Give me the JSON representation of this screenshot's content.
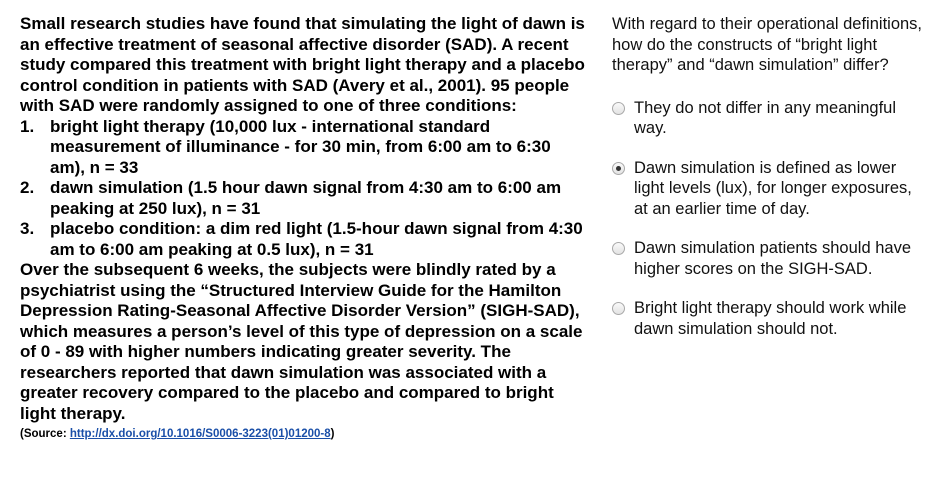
{
  "passage": {
    "intro": "Small research studies have found that simulating the light of dawn is an effective treatment of seasonal affective disorder (SAD). A recent study compared this treatment with bright light therapy and a placebo control condition in patients with SAD (Avery et al., 2001). 95 people with SAD were randomly assigned to one of three conditions:",
    "conditions": [
      {
        "num": "1.",
        "text": "bright light therapy (10,000 lux - international standard measurement of illuminance - for 30 min, from 6:00 am to 6:30 am), n = 33"
      },
      {
        "num": "2.",
        "text": "dawn simulation (1.5 hour dawn signal from 4:30 am to 6:00 am peaking at 250 lux), n = 31"
      },
      {
        "num": "3.",
        "text": "placebo condition: a dim red light (1.5-hour dawn signal from 4:30 am to 6:00 am peaking at 0.5 lux), n = 31"
      }
    ],
    "conclusion": "Over the subsequent 6 weeks, the subjects were blindly rated by a psychiatrist using the “Structured Interview Guide for the Hamilton Depression Rating-Seasonal Affective Disorder Version” (SIGH-SAD), which measures a person’s level of this type of depression on a scale of 0 - 89 with higher numbers indicating greater severity. The researchers reported that dawn simulation was associated with a greater recovery compared to the placebo and compared to bright light therapy.",
    "source_prefix": "(Source: ",
    "source_link": "http://dx.doi.org/10.1016/S0006-3223(01)01200-8",
    "source_suffix": ")"
  },
  "question": {
    "prompt": "With regard to their operational definitions, how do the constructs of “bright light therapy” and “dawn simulation” differ?",
    "options": [
      {
        "text": "They do not differ in any meaningful way.",
        "selected": false
      },
      {
        "text": "Dawn simulation is defined as lower light levels (lux), for longer exposures, at an earlier time of day.",
        "selected": true
      },
      {
        "text": "Dawn simulation patients should have higher scores on the SIGH-SAD.",
        "selected": false
      },
      {
        "text": "Bright light therapy should work while dawn simulation should not.",
        "selected": false
      }
    ]
  }
}
